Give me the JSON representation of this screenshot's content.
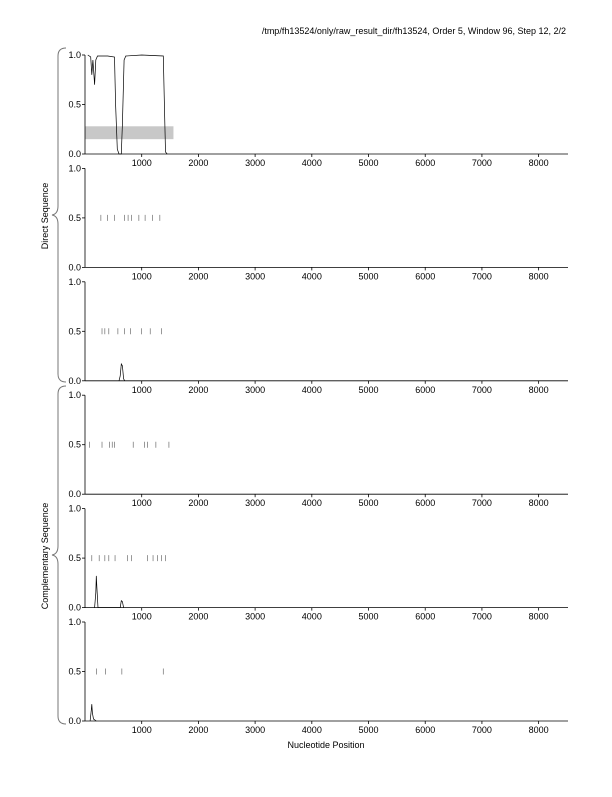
{
  "header": "/tmp/fh13524/only/raw_result_dir/fh13524, Order 5, Window 96, Step 12, 2/2",
  "group_labels": [
    "Direct Sequence",
    "Complementary Sequence"
  ],
  "x_label": "Nucleotide Position",
  "chart_data": [
    {
      "type": "line",
      "xlim": [
        0,
        8518
      ],
      "xticks": [
        1000,
        2000,
        3000,
        4000,
        5000,
        6000,
        7000,
        8000
      ],
      "ylim": [
        0,
        1
      ],
      "yticks": [
        {
          "value": 0,
          "label": "0.0"
        },
        0.5,
        {
          "value": 1,
          "label": "1.0"
        }
      ],
      "band": {
        "x": [
          0,
          1560
        ],
        "y": [
          0.15,
          0.28
        ],
        "color": "#c8c8c8"
      },
      "series": [
        {
          "color": "#000000",
          "x": [
            50,
            100,
            120,
            140,
            170,
            190,
            220,
            400,
            520,
            540,
            570,
            600,
            640,
            660,
            690,
            720,
            1000,
            1380,
            1400,
            1420,
            1450
          ],
          "values": [
            1.0,
            0.98,
            0.8,
            0.95,
            0.7,
            0.95,
            0.99,
            0.99,
            0.98,
            0.5,
            0.05,
            0,
            0,
            0.3,
            0.95,
            0.99,
            1.0,
            0.99,
            0.5,
            0.02,
            0
          ]
        }
      ]
    },
    {
      "type": "line",
      "xlim": [
        0,
        8518
      ],
      "xticks": [
        1000,
        2000,
        3000,
        4000,
        5000,
        6000,
        7000,
        8000
      ],
      "ylim": [
        0,
        1
      ],
      "yticks": [
        {
          "value": 0,
          "label": "0.0"
        },
        0.5,
        {
          "value": 1,
          "label": "1.0"
        }
      ],
      "marker_level": 0.5,
      "markers": [
        280,
        400,
        520,
        700,
        760,
        820,
        950,
        1060,
        1190,
        1320
      ],
      "series": []
    },
    {
      "type": "line",
      "xlim": [
        0,
        8518
      ],
      "xticks": [
        1000,
        2000,
        3000,
        4000,
        5000,
        6000,
        7000,
        8000
      ],
      "ylim": [
        0,
        1
      ],
      "yticks": [
        {
          "value": 0,
          "label": "0.0"
        },
        0.5,
        {
          "value": 1,
          "label": "1.0"
        }
      ],
      "marker_level": 0.5,
      "markers": [
        300,
        350,
        420,
        580,
        700,
        800,
        1000,
        1150,
        1350
      ],
      "series": [
        {
          "color": "#000000",
          "x": [
            600,
            620,
            640,
            660,
            680,
            700
          ],
          "values": [
            0,
            0.05,
            0.17,
            0.15,
            0.02,
            0
          ]
        }
      ]
    },
    {
      "type": "line",
      "xlim": [
        0,
        8518
      ],
      "xticks": [
        1000,
        2000,
        3000,
        4000,
        5000,
        6000,
        7000,
        8000
      ],
      "ylim": [
        0,
        1
      ],
      "yticks": [
        {
          "value": 0,
          "label": "0.0"
        },
        0.5,
        {
          "value": 1,
          "label": "1.0"
        }
      ],
      "marker_level": 0.5,
      "markers": [
        80,
        300,
        430,
        480,
        520,
        850,
        1050,
        1100,
        1250,
        1480
      ],
      "series": []
    },
    {
      "type": "line",
      "xlim": [
        0,
        8518
      ],
      "xticks": [
        1000,
        2000,
        3000,
        4000,
        5000,
        6000,
        7000,
        8000
      ],
      "ylim": [
        0,
        1
      ],
      "yticks": [
        {
          "value": 0,
          "label": "0.0"
        },
        0.5,
        {
          "value": 1,
          "label": "1.0"
        }
      ],
      "marker_level": 0.5,
      "markers": [
        120,
        250,
        350,
        420,
        530,
        750,
        820,
        1100,
        1200,
        1280,
        1350,
        1420
      ],
      "series": [
        {
          "color": "#000000",
          "x": [
            170,
            190,
            200,
            210,
            230,
            620,
            640,
            660,
            680
          ],
          "values": [
            0,
            0.15,
            0.32,
            0.2,
            0,
            0,
            0.07,
            0.06,
            0
          ]
        }
      ]
    },
    {
      "type": "line",
      "xlim": [
        0,
        8518
      ],
      "xticks": [
        1000,
        2000,
        3000,
        4000,
        5000,
        6000,
        7000,
        8000
      ],
      "ylim": [
        0,
        1
      ],
      "yticks": [
        {
          "value": 0,
          "label": "0.0"
        },
        0.5,
        {
          "value": 1,
          "label": "1.0"
        }
      ],
      "marker_level": 0.5,
      "markers": [
        200,
        360,
        650,
        1380
      ],
      "series": [
        {
          "color": "#000000",
          "x": [
            90,
            110,
            120,
            130,
            150,
            200
          ],
          "values": [
            0,
            0.1,
            0.17,
            0.08,
            0.02,
            0
          ]
        }
      ]
    }
  ]
}
